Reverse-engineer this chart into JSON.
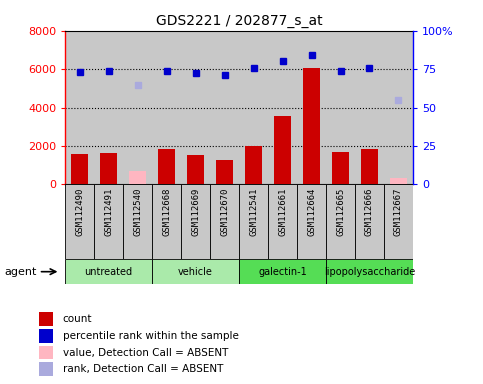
{
  "title": "GDS2221 / 202877_s_at",
  "samples": [
    "GSM112490",
    "GSM112491",
    "GSM112540",
    "GSM112668",
    "GSM112669",
    "GSM112670",
    "GSM112541",
    "GSM112661",
    "GSM112664",
    "GSM112665",
    "GSM112666",
    "GSM112667"
  ],
  "counts": [
    1600,
    1650,
    null,
    1850,
    1520,
    1280,
    2000,
    3550,
    6050,
    1700,
    1850,
    null
  ],
  "absent_counts": [
    null,
    null,
    680,
    null,
    null,
    null,
    null,
    null,
    null,
    null,
    null,
    330
  ],
  "ranks_pct": [
    73,
    74,
    null,
    74,
    72.5,
    71.2,
    75.5,
    80.4,
    84.4,
    74,
    76,
    null
  ],
  "absent_ranks_pct": [
    null,
    null,
    64.7,
    null,
    null,
    null,
    null,
    null,
    null,
    null,
    null,
    55
  ],
  "agent_groups": [
    {
      "label": "untreated",
      "start": 0,
      "end": 2,
      "color": "#AAEAAA"
    },
    {
      "label": "vehicle",
      "start": 3,
      "end": 5,
      "color": "#AAEAAA"
    },
    {
      "label": "galectin-1",
      "start": 6,
      "end": 8,
      "color": "#55DD55"
    },
    {
      "label": "lipopolysaccharide",
      "start": 9,
      "end": 11,
      "color": "#55DD55"
    }
  ],
  "ylim_left": [
    0,
    8000
  ],
  "ylim_right": [
    0,
    100
  ],
  "yticks_left": [
    0,
    2000,
    4000,
    6000,
    8000
  ],
  "yticks_left_labels": [
    "0",
    "2000",
    "4000",
    "6000",
    "8000"
  ],
  "yticks_right": [
    0,
    25,
    50,
    75,
    100
  ],
  "yticks_right_labels": [
    "0",
    "25",
    "50",
    "75",
    "100%"
  ],
  "bar_color": "#CC0000",
  "absent_bar_color": "#FFB6C1",
  "rank_color": "#0000CC",
  "absent_rank_color": "#AAAADD",
  "plot_bg_color": "#C8C8C8",
  "sample_bg_color": "#C8C8C8",
  "legend_items": [
    {
      "color": "#CC0000",
      "label": "count"
    },
    {
      "color": "#0000CC",
      "label": "percentile rank within the sample"
    },
    {
      "color": "#FFB6C1",
      "label": "value, Detection Call = ABSENT"
    },
    {
      "color": "#AAAADD",
      "label": "rank, Detection Call = ABSENT"
    }
  ]
}
